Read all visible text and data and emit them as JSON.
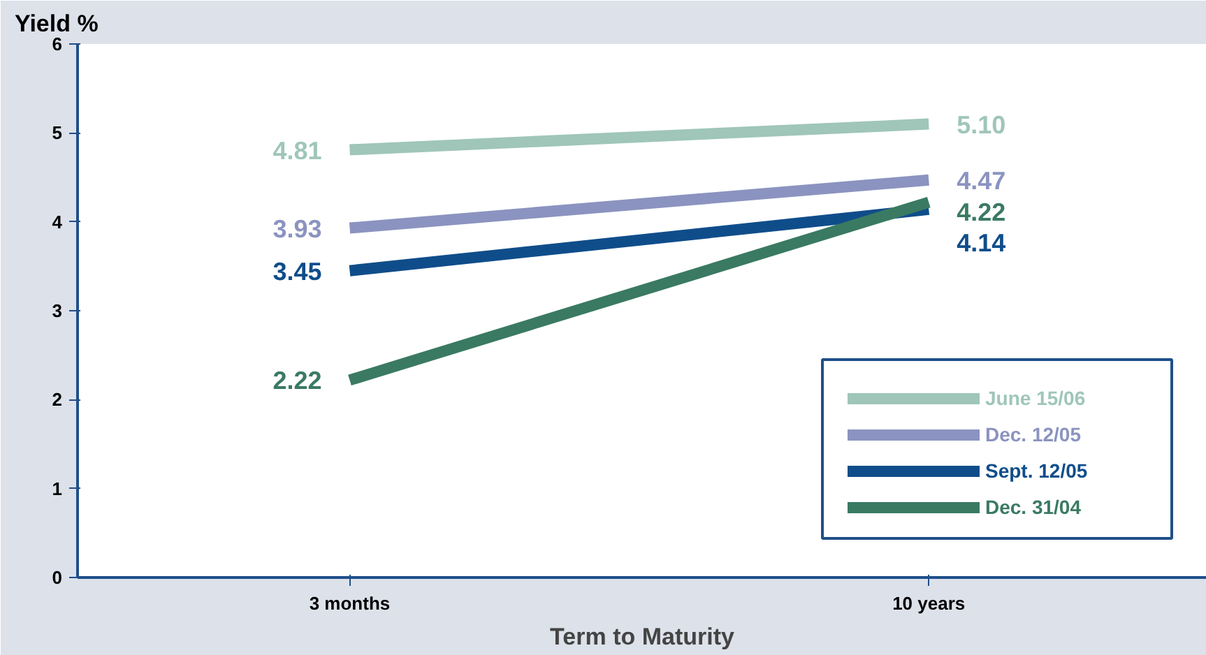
{
  "chart_data": {
    "type": "line",
    "xlabel": "Term to Maturity",
    "ylabel": "Yield %",
    "categories": [
      "3 months",
      "10 years"
    ],
    "ylim": [
      0,
      6
    ],
    "yticks": [
      0,
      1,
      2,
      3,
      4,
      5,
      6
    ],
    "grid": false,
    "legend": "bottom right",
    "marker": "none",
    "line_style": "solid",
    "series": [
      {
        "name": "June 15/06",
        "color": "#9fc6b8",
        "values": [
          4.81,
          5.1
        ],
        "value_labels": [
          "4.81",
          "5.10"
        ]
      },
      {
        "name": "Dec. 12/05",
        "color": "#8b93c0",
        "values": [
          3.93,
          4.47
        ],
        "value_labels": [
          "3.93",
          "4.47"
        ]
      },
      {
        "name": "Sept. 12/05",
        "color": "#0f4d8a",
        "values": [
          3.45,
          4.14
        ],
        "value_labels": [
          "3.45",
          "4.14"
        ]
      },
      {
        "name": "Dec. 31/04",
        "color": "#3a7a62",
        "values": [
          2.22,
          4.22
        ],
        "value_labels": [
          "2.22",
          "4.22"
        ]
      }
    ]
  }
}
